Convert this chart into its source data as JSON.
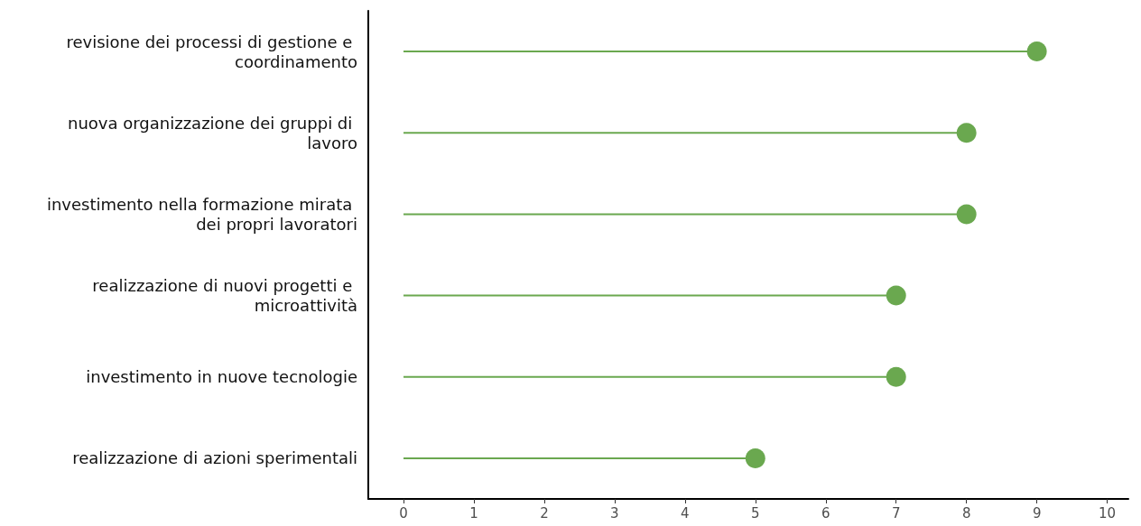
{
  "chart_data": {
    "type": "lollipop",
    "orientation": "horizontal",
    "categories": [
      "revisione dei processi di gestione e coordinamento",
      "nuova organizzazione dei gruppi di lavoro",
      "investimento nella formazione mirata dei propri lavoratori",
      "realizzazione di nuovi progetti e microattività",
      "investimento in nuove tecnologie",
      "realizzazione di azioni sperimentali"
    ],
    "values": [
      9,
      8,
      8,
      7,
      7,
      5
    ],
    "color": "#6aa84f",
    "xlim": [
      -0.5,
      10.3
    ],
    "xticks": [
      0,
      1,
      2,
      3,
      4,
      5,
      6,
      7,
      8,
      9,
      10
    ],
    "grid": false,
    "marker": "circle"
  }
}
